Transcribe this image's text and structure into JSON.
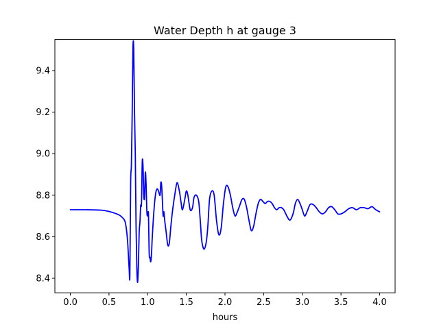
{
  "chart_data": {
    "type": "line",
    "title": "Water Depth h at gauge 3",
    "xlabel": "hours",
    "ylabel": "",
    "xlim": [
      -0.2,
      4.2
    ],
    "ylim": [
      8.33,
      9.55
    ],
    "x_ticks": [
      0.0,
      0.5,
      1.0,
      1.5,
      2.0,
      2.5,
      3.0,
      3.5,
      4.0
    ],
    "x_tick_labels": [
      "0.0",
      "0.5",
      "1.0",
      "1.5",
      "2.0",
      "2.5",
      "3.0",
      "3.5",
      "4.0"
    ],
    "y_ticks": [
      8.4,
      8.6,
      8.8,
      9.0,
      9.2,
      9.4
    ],
    "y_tick_labels": [
      "8.4",
      "8.6",
      "8.8",
      "9.0",
      "9.2",
      "9.4"
    ],
    "grid": false,
    "legend": "none",
    "series": [
      {
        "color": "#0000ff",
        "x": [
          0.0,
          0.2,
          0.4,
          0.5,
          0.6,
          0.65,
          0.7,
          0.72,
          0.74,
          0.76,
          0.77,
          0.78,
          0.79,
          0.8,
          0.81,
          0.82,
          0.83,
          0.84,
          0.85,
          0.86,
          0.87,
          0.88,
          0.89,
          0.9,
          0.91,
          0.92,
          0.93,
          0.94,
          0.95,
          0.96,
          0.97,
          0.98,
          0.99,
          1.0,
          1.01,
          1.02,
          1.03,
          1.04,
          1.05,
          1.06,
          1.08,
          1.1,
          1.12,
          1.14,
          1.16,
          1.17,
          1.18,
          1.19,
          1.2,
          1.21,
          1.22,
          1.24,
          1.26,
          1.28,
          1.3,
          1.32,
          1.35,
          1.38,
          1.41,
          1.43,
          1.45,
          1.48,
          1.5,
          1.52,
          1.55,
          1.58,
          1.6,
          1.63,
          1.66,
          1.68,
          1.7,
          1.73,
          1.76,
          1.78,
          1.8,
          1.83,
          1.86,
          1.89,
          1.92,
          1.95,
          1.98,
          2.01,
          2.04,
          2.07,
          2.1,
          2.13,
          2.16,
          2.19,
          2.22,
          2.25,
          2.28,
          2.31,
          2.34,
          2.37,
          2.4,
          2.43,
          2.46,
          2.49,
          2.52,
          2.55,
          2.58,
          2.61,
          2.64,
          2.67,
          2.7,
          2.73,
          2.76,
          2.8,
          2.84,
          2.88,
          2.91,
          2.94,
          2.97,
          3.0,
          3.03,
          3.06,
          3.1,
          3.14,
          3.18,
          3.22,
          3.26,
          3.3,
          3.34,
          3.38,
          3.42,
          3.46,
          3.5,
          3.55,
          3.6,
          3.65,
          3.7,
          3.75,
          3.8,
          3.85,
          3.9,
          3.95,
          4.0
        ],
        "y": [
          8.73,
          8.73,
          8.728,
          8.722,
          8.71,
          8.7,
          8.68,
          8.65,
          8.58,
          8.45,
          8.42,
          8.86,
          8.95,
          9.2,
          9.51,
          9.5,
          9.2,
          9.0,
          8.65,
          8.45,
          8.38,
          8.46,
          8.62,
          8.67,
          8.75,
          8.76,
          8.96,
          8.94,
          8.8,
          8.79,
          8.91,
          8.85,
          8.72,
          8.7,
          8.71,
          8.52,
          8.5,
          8.48,
          8.52,
          8.6,
          8.72,
          8.8,
          8.83,
          8.82,
          8.8,
          8.86,
          8.85,
          8.78,
          8.7,
          8.72,
          8.68,
          8.62,
          8.56,
          8.57,
          8.65,
          8.72,
          8.8,
          8.86,
          8.82,
          8.77,
          8.73,
          8.78,
          8.82,
          8.8,
          8.73,
          8.74,
          8.79,
          8.8,
          8.77,
          8.68,
          8.58,
          8.54,
          8.58,
          8.66,
          8.78,
          8.82,
          8.8,
          8.68,
          8.61,
          8.64,
          8.76,
          8.84,
          8.84,
          8.8,
          8.74,
          8.7,
          8.72,
          8.75,
          8.78,
          8.78,
          8.74,
          8.68,
          8.63,
          8.65,
          8.71,
          8.76,
          8.78,
          8.77,
          8.76,
          8.77,
          8.77,
          8.76,
          8.74,
          8.73,
          8.74,
          8.74,
          8.73,
          8.7,
          8.68,
          8.71,
          8.76,
          8.78,
          8.76,
          8.73,
          8.7,
          8.72,
          8.755,
          8.755,
          8.74,
          8.72,
          8.71,
          8.72,
          8.74,
          8.745,
          8.73,
          8.71,
          8.71,
          8.72,
          8.735,
          8.74,
          8.73,
          8.74,
          8.74,
          8.735,
          8.745,
          8.73,
          8.72
        ]
      }
    ]
  }
}
